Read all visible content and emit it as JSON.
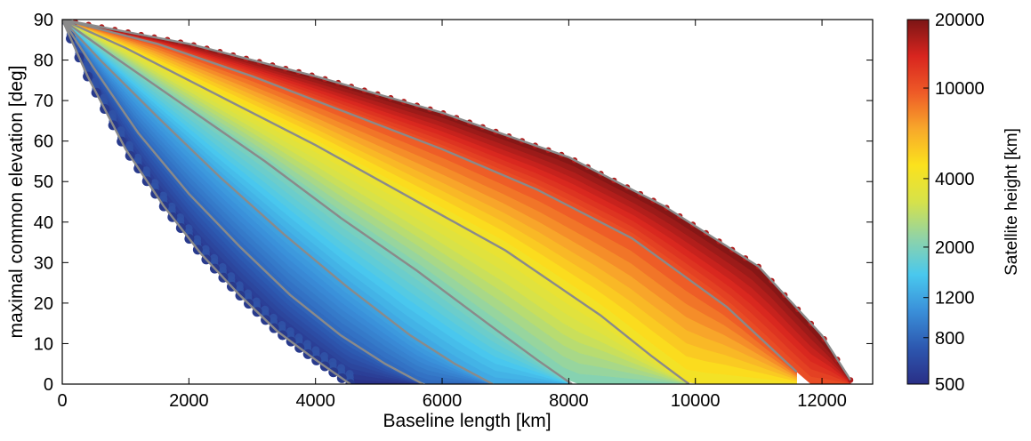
{
  "chart_data": {
    "type": "scatter",
    "xlabel": "Baseline length [km]",
    "ylabel": "maximal common elevation [deg]",
    "xlim": [
      0,
      12800
    ],
    "ylim": [
      0,
      90
    ],
    "xticks": [
      "0",
      "2000",
      "4000",
      "6000",
      "8000",
      "10000",
      "12000"
    ],
    "yticks": [
      "0",
      "10",
      "20",
      "30",
      "40",
      "50",
      "60",
      "70",
      "80",
      "90"
    ],
    "xtick_values": [
      0,
      2000,
      4000,
      6000,
      8000,
      10000,
      12000
    ],
    "ytick_values": [
      0,
      10,
      20,
      30,
      40,
      50,
      60,
      70,
      80,
      90
    ],
    "colorbar": {
      "label": "Satellite height [km]",
      "scale": "log",
      "range": [
        500,
        20000
      ],
      "ticks": [
        "20000",
        "10000",
        "4000",
        "2000",
        "1200",
        "800",
        "500"
      ],
      "tick_values": [
        20000,
        10000,
        4000,
        2000,
        1200,
        800,
        500
      ],
      "colormap": [
        "#2a2f86",
        "#2d58b0",
        "#3a8fd9",
        "#49c8ee",
        "#8fd3a8",
        "#d6e24a",
        "#fbe21d",
        "#f8a82a",
        "#ee5a27",
        "#d8251f",
        "#7b1515"
      ]
    },
    "grid": false,
    "curve_color": "#8a8a8a",
    "series": [
      {
        "height_km": 500,
        "max_baseline_km": 4550,
        "points": [
          [
            0,
            90
          ],
          [
            400,
            76
          ],
          [
            1000,
            58
          ],
          [
            1600,
            44
          ],
          [
            2200,
            32
          ],
          [
            2800,
            22
          ],
          [
            3400,
            13
          ],
          [
            4000,
            6
          ],
          [
            4550,
            0
          ]
        ]
      },
      {
        "height_km": 800,
        "max_baseline_km": 5700,
        "points": [
          [
            0,
            90
          ],
          [
            500,
            78
          ],
          [
            1200,
            62
          ],
          [
            2000,
            47
          ],
          [
            2800,
            34
          ],
          [
            3600,
            22
          ],
          [
            4400,
            12
          ],
          [
            5100,
            5
          ],
          [
            5700,
            0
          ]
        ]
      },
      {
        "height_km": 1200,
        "max_baseline_km": 6800,
        "points": [
          [
            0,
            90
          ],
          [
            600,
            80
          ],
          [
            1500,
            66
          ],
          [
            2500,
            51
          ],
          [
            3500,
            37
          ],
          [
            4500,
            24
          ],
          [
            5500,
            12
          ],
          [
            6200,
            5
          ],
          [
            6800,
            0
          ]
        ]
      },
      {
        "height_km": 2000,
        "max_baseline_km": 8050,
        "points": [
          [
            0,
            90
          ],
          [
            800,
            81
          ],
          [
            2000,
            68
          ],
          [
            3200,
            55
          ],
          [
            4400,
            41
          ],
          [
            5600,
            28
          ],
          [
            6800,
            14
          ],
          [
            7500,
            6
          ],
          [
            8050,
            0
          ]
        ]
      },
      {
        "height_km": 4000,
        "max_baseline_km": 9900,
        "points": [
          [
            0,
            90
          ],
          [
            1000,
            83
          ],
          [
            2500,
            71
          ],
          [
            4000,
            59
          ],
          [
            5500,
            46
          ],
          [
            7000,
            33
          ],
          [
            8500,
            17
          ],
          [
            9300,
            7
          ],
          [
            9900,
            0
          ]
        ]
      },
      {
        "height_km": 10000,
        "max_baseline_km": 11600,
        "points": [
          [
            0,
            90
          ],
          [
            1500,
            84
          ],
          [
            3000,
            76
          ],
          [
            4500,
            67
          ],
          [
            6000,
            58
          ],
          [
            7500,
            48
          ],
          [
            9000,
            36
          ],
          [
            10500,
            19
          ],
          [
            11600,
            3
          ]
        ]
      },
      {
        "height_km": 20000,
        "max_baseline_km": 12450,
        "points": [
          [
            0,
            90
          ],
          [
            2000,
            84
          ],
          [
            4000,
            76
          ],
          [
            6000,
            67
          ],
          [
            8000,
            56
          ],
          [
            9500,
            44
          ],
          [
            11000,
            29
          ],
          [
            12000,
            12
          ],
          [
            12450,
            1
          ]
        ]
      }
    ]
  }
}
